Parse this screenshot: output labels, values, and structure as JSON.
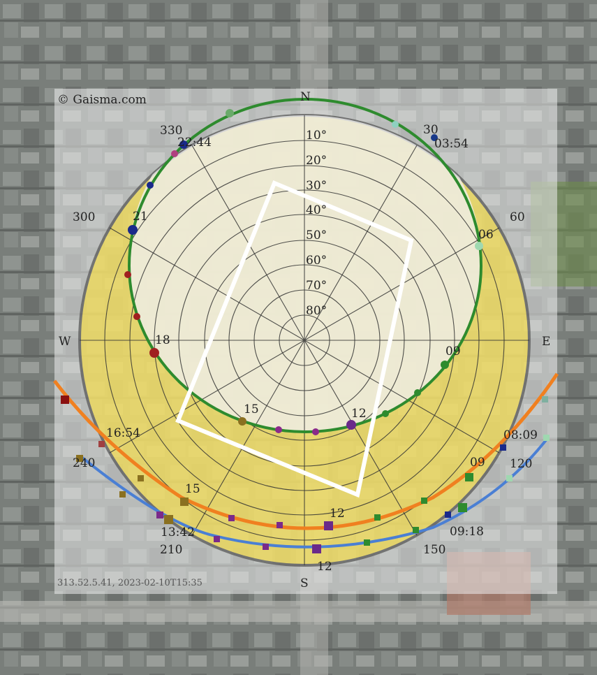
{
  "copyright": "© Gaisma.com",
  "footer_coords": "313.52.5.41, 2023-02-10T15:35",
  "compass": {
    "north": "N",
    "south": "S",
    "east": "E",
    "west": "W"
  },
  "azimuth_labels": [
    "30",
    "60",
    "120",
    "150",
    "210",
    "240",
    "300",
    "330"
  ],
  "elevation_labels": [
    "10°",
    "20°",
    "30°",
    "40°",
    "50°",
    "60°",
    "70°",
    "80°"
  ],
  "summer_path": {
    "color": "#2e8b2e",
    "sunrise_time": "03:54",
    "sunset_time": "22:44",
    "hour_labels": [
      "06",
      "09",
      "12",
      "15",
      "18",
      "21"
    ]
  },
  "equinox_path": {
    "color": "#f08020",
    "sunrise_time": "08:09",
    "sunset_time": "16:54",
    "hour_labels": [
      "09",
      "12",
      "15"
    ]
  },
  "winter_path": {
    "color": "#4a7fd4",
    "sunrise_time": "09:18",
    "sunset_time": "13:42",
    "hour_labels": [
      "12"
    ]
  },
  "colors": {
    "daylight_fill": "#f2dc50",
    "overlay": "#e8e8e8",
    "building_outline": "#ffffff"
  }
}
